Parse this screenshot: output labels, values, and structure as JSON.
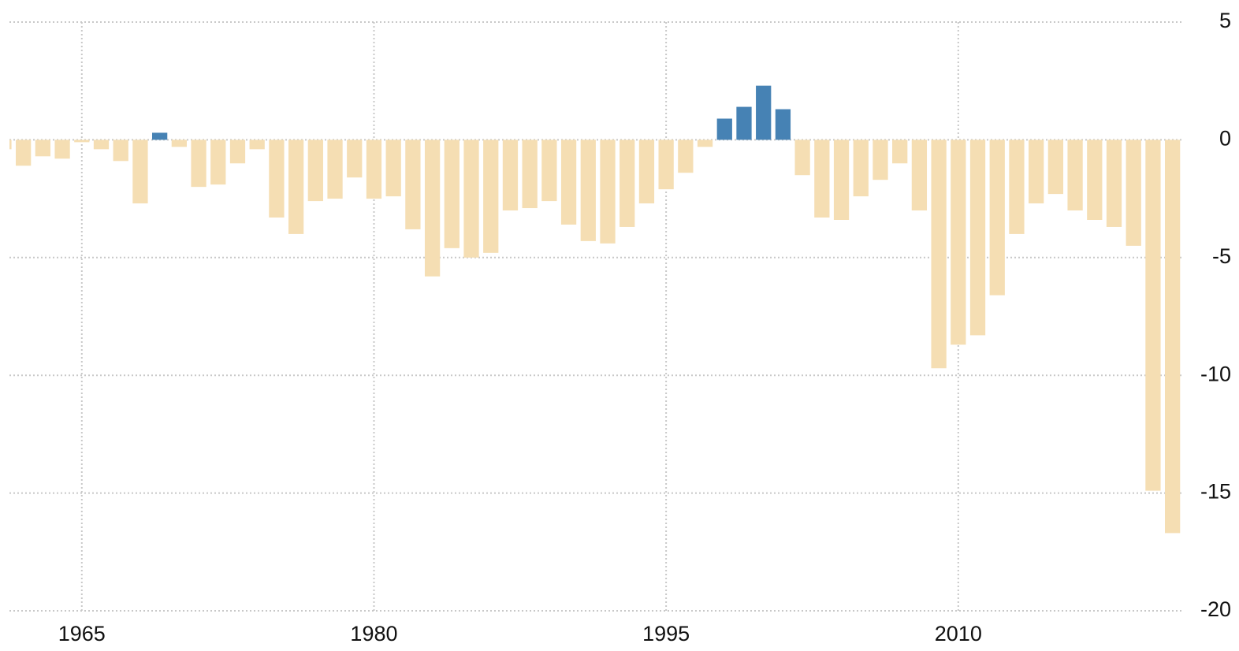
{
  "chart_data": {
    "type": "bar",
    "x": [
      1961,
      1962,
      1963,
      1964,
      1965,
      1966,
      1967,
      1968,
      1969,
      1970,
      1971,
      1972,
      1973,
      1974,
      1975,
      1976,
      1977,
      1978,
      1979,
      1980,
      1981,
      1982,
      1983,
      1984,
      1985,
      1986,
      1987,
      1988,
      1989,
      1990,
      1991,
      1992,
      1993,
      1994,
      1995,
      1996,
      1997,
      1998,
      1999,
      2000,
      2001,
      2002,
      2003,
      2004,
      2005,
      2006,
      2007,
      2008,
      2009,
      2010,
      2011,
      2012,
      2013,
      2014,
      2015,
      2016,
      2017,
      2018,
      2019,
      2020,
      2021
    ],
    "values": [
      -0.4,
      -1.1,
      -0.7,
      -0.8,
      -0.1,
      -0.4,
      -0.9,
      -2.7,
      0.3,
      -0.3,
      -2.0,
      -1.9,
      -1.0,
      -0.4,
      -3.3,
      -4.0,
      -2.6,
      -2.5,
      -1.6,
      -2.5,
      -2.4,
      -3.8,
      -5.8,
      -4.6,
      -5.0,
      -4.8,
      -3.0,
      -2.9,
      -2.6,
      -3.6,
      -4.3,
      -4.4,
      -3.7,
      -2.7,
      -2.1,
      -1.4,
      -0.3,
      0.9,
      1.4,
      2.3,
      1.3,
      -1.5,
      -3.3,
      -3.4,
      -2.4,
      -1.7,
      -1.0,
      -3.0,
      -9.7,
      -8.7,
      -8.3,
      -6.6,
      -4.0,
      -2.7,
      -2.3,
      -3.0,
      -3.4,
      -3.7,
      -4.5,
      -14.9,
      -16.7
    ],
    "positive_color": "#4682b4",
    "negative_color": "#f5deb3",
    "xlim": [
      1960.8,
      2021.5
    ],
    "xticks": [
      1965,
      1980,
      1995,
      2010
    ],
    "ylim": [
      -20,
      5
    ],
    "yticks": [
      5,
      0,
      -5,
      -10,
      -15,
      -20
    ],
    "grid": true
  }
}
